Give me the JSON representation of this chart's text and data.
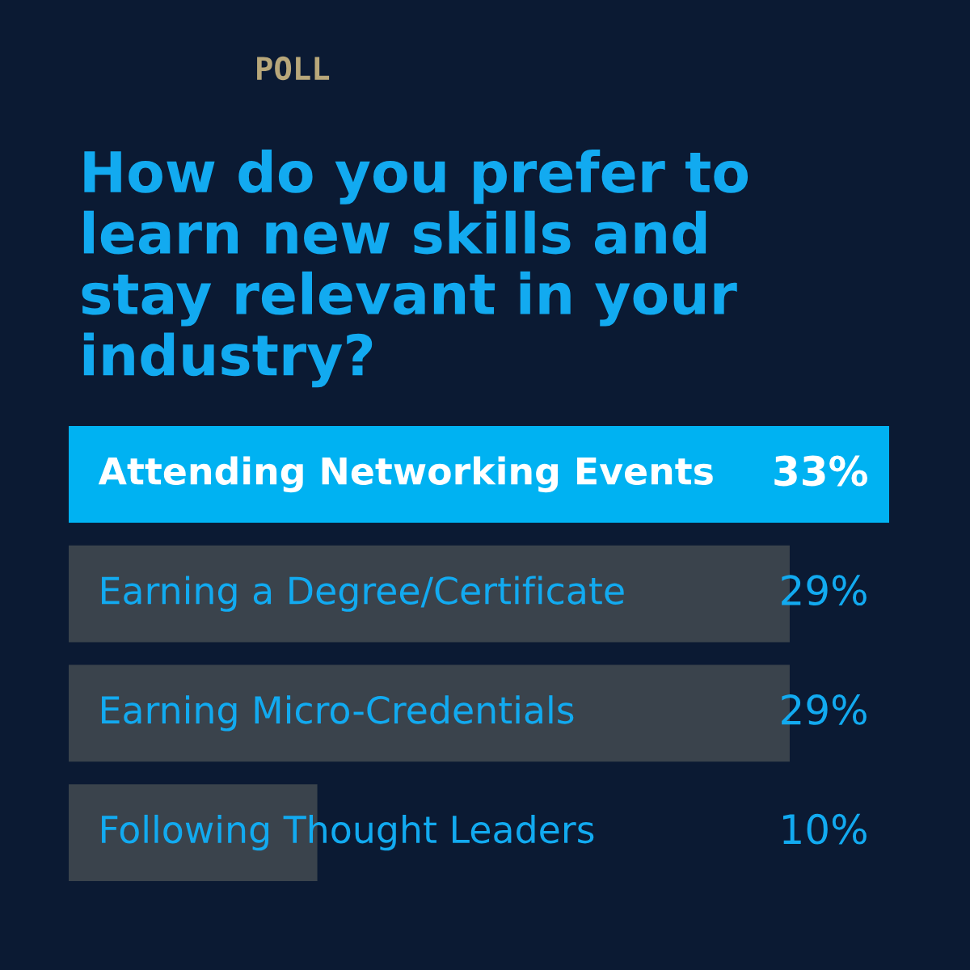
{
  "chart_data": {
    "type": "bar",
    "orientation": "horizontal",
    "title": "How do you prefer to learn new skills and stay relevant in your industry?",
    "annotations": [
      "POLL"
    ],
    "categories": [
      "Attending Networking Events",
      "Earning a Degree/Certificate",
      "Earning Micro-Credentials",
      "Following Thought Leaders"
    ],
    "values": [
      33,
      29,
      29,
      10
    ],
    "colors": [
      "#00b2f2",
      "#3a434c",
      "#3a434c",
      "#3a434c"
    ],
    "value_labels": [
      "33%",
      "29%",
      "29%",
      "10%"
    ]
  }
}
